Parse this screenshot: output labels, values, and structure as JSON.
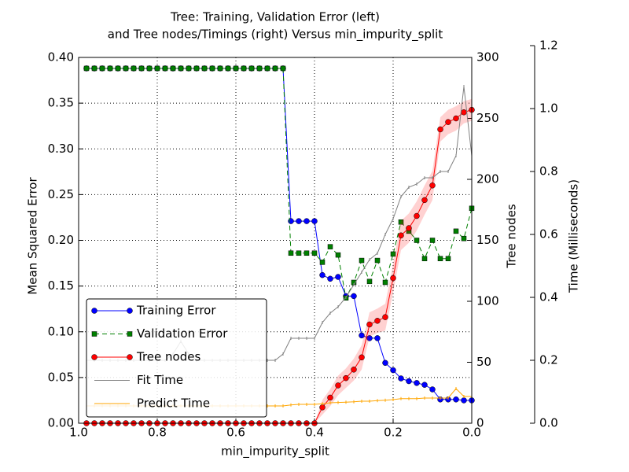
{
  "chart_data": {
    "type": "line",
    "title": [
      "Tree: Training, Validation Error (left)",
      "and Tree nodes/Timings (right) Versus min_impurity_split"
    ],
    "xlabel": "min_impurity_split",
    "ylabel": "Mean Squared Error",
    "ylabel_color": "#008000",
    "y2label": "Tree nodes",
    "y2label_color": "#ff0000",
    "y3label": "Time (Milliseconds)",
    "y3label_color": "#ffa500",
    "x": [
      0.98,
      0.96,
      0.94,
      0.92,
      0.9,
      0.88,
      0.86,
      0.84,
      0.82,
      0.8,
      0.78,
      0.76,
      0.74,
      0.72,
      0.7,
      0.68,
      0.66,
      0.64,
      0.62,
      0.6,
      0.58,
      0.56,
      0.54,
      0.52,
      0.5,
      0.48,
      0.46,
      0.44,
      0.42,
      0.4,
      0.38,
      0.36,
      0.34,
      0.32,
      0.3,
      0.28,
      0.26,
      0.24,
      0.22,
      0.2,
      0.18,
      0.16,
      0.14,
      0.12,
      0.1,
      0.08,
      0.06,
      0.04,
      0.02,
      0.0
    ],
    "xlim": [
      1.0,
      0.0
    ],
    "xticks": [
      {
        "value": 1.0,
        "label": "1.0"
      },
      {
        "value": 0.8,
        "label": "0.8"
      },
      {
        "value": 0.6,
        "label": "0.6"
      },
      {
        "value": 0.4,
        "label": "0.4"
      },
      {
        "value": 0.2,
        "label": "0.2"
      },
      {
        "value": 0.0,
        "label": "0.0"
      }
    ],
    "ylim": [
      0,
      0.4
    ],
    "yticks": [
      {
        "value": 0,
        "label": "0.00"
      },
      {
        "value": 0.05,
        "label": "0.05"
      },
      {
        "value": 0.1,
        "label": "0.10"
      },
      {
        "value": 0.15,
        "label": "0.15"
      },
      {
        "value": 0.2,
        "label": "0.20"
      },
      {
        "value": 0.25,
        "label": "0.25"
      },
      {
        "value": 0.3,
        "label": "0.30"
      },
      {
        "value": 0.35,
        "label": "0.35"
      },
      {
        "value": 0.4,
        "label": "0.40"
      }
    ],
    "y2lim": [
      0,
      300
    ],
    "y2ticks": [
      0,
      50,
      100,
      150,
      200,
      250,
      300
    ],
    "y3lim": [
      0,
      1.2
    ],
    "y3ticks": [
      {
        "value": 0,
        "label": "0.0"
      },
      {
        "value": 0.2,
        "label": "0.2"
      },
      {
        "value": 0.4,
        "label": "0.4"
      },
      {
        "value": 0.6,
        "label": "0.6"
      },
      {
        "value": 0.8,
        "label": "0.8"
      },
      {
        "value": 1.0,
        "label": "1.0"
      },
      {
        "value": 1.2,
        "label": "1.2"
      }
    ],
    "grid": true,
    "legend": "lower left",
    "series": [
      {
        "name": "Training Error",
        "color": "#0000ff",
        "marker": "circle",
        "dashed": false,
        "values": [
          0.388,
          0.388,
          0.388,
          0.388,
          0.388,
          0.388,
          0.388,
          0.388,
          0.388,
          0.388,
          0.388,
          0.388,
          0.388,
          0.388,
          0.388,
          0.388,
          0.388,
          0.388,
          0.388,
          0.388,
          0.388,
          0.388,
          0.388,
          0.388,
          0.388,
          0.388,
          0.221,
          0.221,
          0.221,
          0.221,
          0.162,
          0.158,
          0.16,
          0.139,
          0.139,
          0.096,
          0.093,
          0.093,
          0.066,
          0.058,
          0.049,
          0.046,
          0.044,
          0.042,
          0.037,
          0.026,
          0.026,
          0.026,
          0.025,
          0.025
        ]
      },
      {
        "name": "Validation Error",
        "color": "#008000",
        "marker": "square",
        "dashed": true,
        "values": [
          0.388,
          0.388,
          0.388,
          0.388,
          0.388,
          0.388,
          0.388,
          0.388,
          0.388,
          0.388,
          0.388,
          0.388,
          0.388,
          0.388,
          0.388,
          0.388,
          0.388,
          0.388,
          0.388,
          0.388,
          0.388,
          0.388,
          0.388,
          0.388,
          0.388,
          0.388,
          0.186,
          0.186,
          0.186,
          0.186,
          0.176,
          0.193,
          0.184,
          0.137,
          0.154,
          0.178,
          0.155,
          0.178,
          0.154,
          0.185,
          0.22,
          0.21,
          0.2,
          0.18,
          0.2,
          0.18,
          0.18,
          0.21,
          0.202,
          0.235
        ]
      },
      {
        "name": "Tree nodes",
        "color": "#ff0000",
        "marker": "circle",
        "dashed": false,
        "axis": "y2",
        "values": [
          0,
          0,
          0,
          0,
          0,
          0,
          0,
          0,
          0,
          0,
          0,
          0,
          0,
          0,
          0,
          0,
          0,
          0,
          0,
          0,
          0,
          0,
          0,
          0,
          0,
          0,
          0,
          0,
          0,
          0,
          13,
          21,
          31,
          37,
          44,
          54,
          81,
          84,
          87,
          119,
          154,
          160,
          170,
          183,
          195,
          241,
          247,
          250,
          255,
          257
        ],
        "error": [
          0,
          0,
          0,
          0,
          0,
          0,
          0,
          0,
          0,
          0,
          0,
          0,
          0,
          0,
          0,
          0,
          0,
          0,
          0,
          0,
          0,
          0,
          0,
          0,
          0,
          0,
          0,
          0,
          0,
          0,
          6,
          7,
          8,
          8,
          9,
          10,
          10,
          10,
          11,
          12,
          12,
          12,
          12,
          12,
          12,
          10,
          10,
          10,
          9,
          9
        ]
      },
      {
        "name": "Fit Time",
        "color": "#808080",
        "marker": "tick",
        "dashed": false,
        "axis": "y3",
        "values": [
          0.2,
          0.2,
          0.2,
          0.2,
          0.2,
          0.2,
          0.2,
          0.2,
          0.2,
          0.2,
          0.2,
          0.22,
          0.26,
          0.22,
          0.2,
          0.2,
          0.2,
          0.2,
          0.2,
          0.2,
          0.2,
          0.2,
          0.2,
          0.2,
          0.2,
          0.22,
          0.27,
          0.27,
          0.27,
          0.27,
          0.32,
          0.35,
          0.37,
          0.4,
          0.44,
          0.48,
          0.52,
          0.54,
          0.6,
          0.65,
          0.72,
          0.75,
          0.76,
          0.78,
          0.78,
          0.8,
          0.8,
          0.85,
          1.07,
          0.85
        ]
      },
      {
        "name": "Predict Time",
        "color": "#ffa500",
        "marker": "tick",
        "dashed": false,
        "axis": "y3",
        "values": [
          0.055,
          0.055,
          0.055,
          0.055,
          0.055,
          0.055,
          0.055,
          0.055,
          0.055,
          0.055,
          0.055,
          0.055,
          0.055,
          0.055,
          0.055,
          0.055,
          0.055,
          0.055,
          0.055,
          0.055,
          0.055,
          0.055,
          0.055,
          0.055,
          0.055,
          0.055,
          0.058,
          0.06,
          0.06,
          0.06,
          0.062,
          0.065,
          0.066,
          0.067,
          0.068,
          0.07,
          0.07,
          0.072,
          0.073,
          0.075,
          0.078,
          0.078,
          0.078,
          0.08,
          0.08,
          0.08,
          0.08,
          0.11,
          0.085,
          0.085
        ]
      }
    ]
  }
}
